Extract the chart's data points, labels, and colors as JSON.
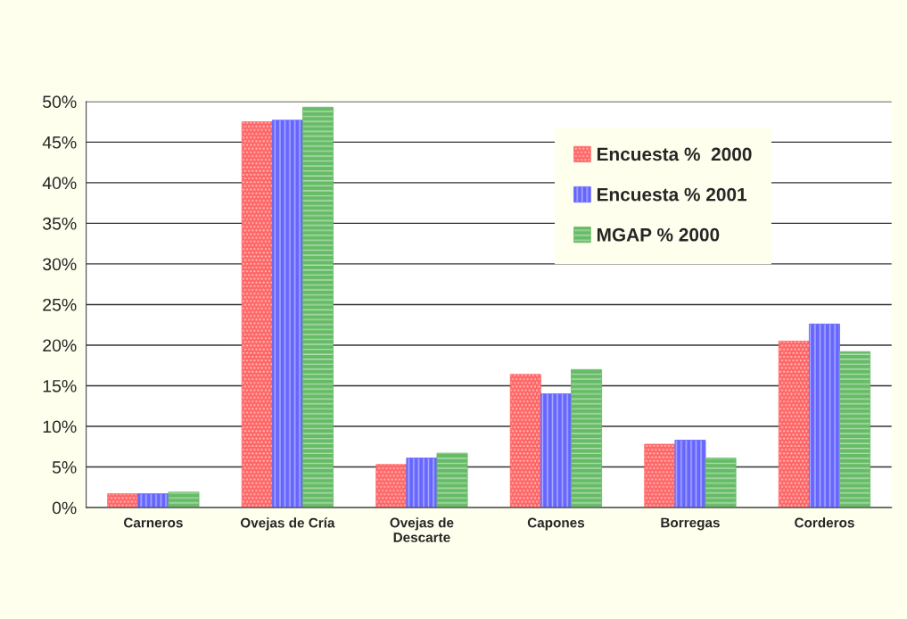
{
  "chart_data": {
    "type": "bar",
    "categories": [
      "Carneros",
      "Ovejas de Cría",
      "Ovejas de\nDescarte",
      "Capones",
      "Borregas",
      "Corderos"
    ],
    "series": [
      {
        "name": "Encuesta %  2000",
        "color": "#ff6666",
        "values": [
          1.7,
          47.5,
          5.3,
          16.4,
          7.8,
          20.5
        ]
      },
      {
        "name": "Encuesta % 2001",
        "color": "#6666ff",
        "values": [
          1.7,
          47.7,
          6.1,
          14.0,
          8.3,
          22.6
        ]
      },
      {
        "name": "MGAP % 2000",
        "color": "#66bb66",
        "values": [
          1.9,
          49.3,
          6.7,
          17.0,
          6.1,
          19.2
        ]
      }
    ],
    "ylim": [
      0,
      50
    ],
    "yticks": [
      {
        "value": 0,
        "label": "0%"
      },
      {
        "value": 5,
        "label": "5%"
      },
      {
        "value": 10,
        "label": "10%"
      },
      {
        "value": 15,
        "label": "15%"
      },
      {
        "value": 20,
        "label": "20%"
      },
      {
        "value": 25,
        "label": "25%"
      },
      {
        "value": 30,
        "label": "30%"
      },
      {
        "value": 35,
        "label": "35%"
      },
      {
        "value": 40,
        "label": "40%"
      },
      {
        "value": 45,
        "label": "45%"
      },
      {
        "value": 50,
        "label": "50%"
      }
    ],
    "grid": "y",
    "legend": "top right"
  }
}
